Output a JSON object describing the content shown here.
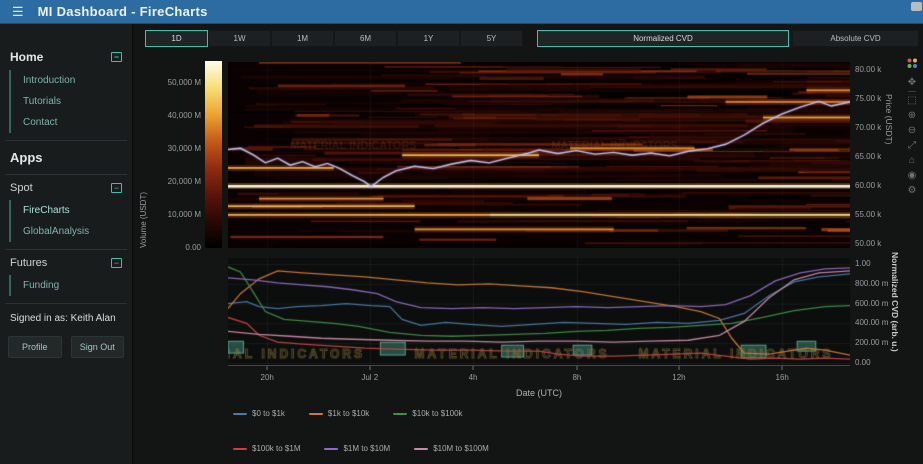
{
  "navbar": {
    "title": "MI Dashboard - FireCharts",
    "menu_glyph": "☰"
  },
  "sidebar": {
    "collapse_glyph": "−",
    "home_label": "Home",
    "home_items": [
      "Introduction",
      "Tutorials",
      "Contact"
    ],
    "apps_label": "Apps",
    "spot_label": "Spot",
    "spot_items": [
      "FireCharts",
      "GlobalAnalysis"
    ],
    "futures_label": "Futures",
    "futures_items": [
      "Funding"
    ],
    "signed_in": "Signed in as: Keith Alan",
    "profile_button": "Profile",
    "signout_button": "Sign Out"
  },
  "controls": {
    "ranges": [
      "1D",
      "1W",
      "1M",
      "6M",
      "1Y",
      "5Y"
    ],
    "active_range": "1D",
    "modes": [
      "Normalized CVD",
      "Absolute CVD"
    ],
    "active_mode": "Normalized CVD"
  },
  "modebar": {
    "icons": [
      {
        "name": "pan",
        "glyph": "✥"
      },
      {
        "name": "box-select",
        "glyph": "⬚"
      },
      {
        "name": "zoom-in",
        "glyph": "⊕"
      },
      {
        "name": "zoom-out",
        "glyph": "⊖"
      },
      {
        "name": "autoscale",
        "glyph": "⤢"
      },
      {
        "name": "reset-axes",
        "glyph": "⌂"
      },
      {
        "name": "camera",
        "glyph": "◉"
      },
      {
        "name": "settings",
        "glyph": "⚙"
      }
    ]
  },
  "accent": {
    "teal": "#3fbfae",
    "navbar_blue": "#2d6ba3"
  },
  "chart_data": [
    {
      "type": "heatmap",
      "title": "Order book volume heatmap with price overlay",
      "colorbar": {
        "label": "Volume (USDT)",
        "ticks": [
          "50,000 M",
          "40,000 M",
          "30,000 M",
          "20,000 M",
          "10,000 M",
          "0.00"
        ],
        "range": [
          0,
          50000
        ]
      },
      "yaxis_right": {
        "label": "Price (USDT)",
        "ticks": [
          "80.00 k",
          "75.00 k",
          "70.00 k",
          "65.00 k",
          "60.00 k",
          "55.00 k",
          "50.00 k"
        ],
        "range": [
          49300,
          81400
        ]
      },
      "colorscale": [
        "#000000",
        "#2a0804",
        "#5a150a",
        "#8f2c10",
        "#c55a18",
        "#eda332",
        "#f7df77",
        "#fffceb"
      ],
      "grid": false,
      "liquidity_bands": [
        {
          "price": 60000,
          "x0": 0.0,
          "x1": 1.0,
          "strength": 1.0
        },
        {
          "price": 55000,
          "x0": 0.42,
          "x1": 1.0,
          "strength": 0.75
        },
        {
          "price": 55000,
          "x0": 0.0,
          "x1": 0.42,
          "strength": 0.45
        },
        {
          "price": 65300,
          "x0": 0.28,
          "x1": 0.5,
          "strength": 0.5
        },
        {
          "price": 63100,
          "x0": 0.0,
          "x1": 0.17,
          "strength": 0.45
        },
        {
          "price": 66500,
          "x0": 0.55,
          "x1": 0.75,
          "strength": 0.3
        },
        {
          "price": 71800,
          "x0": 0.86,
          "x1": 1.0,
          "strength": 0.4
        },
        {
          "price": 76500,
          "x0": 0.93,
          "x1": 1.0,
          "strength": 0.3
        },
        {
          "price": 52500,
          "x0": 0.3,
          "x1": 0.62,
          "strength": 0.3
        },
        {
          "price": 56500,
          "x0": 0.0,
          "x1": 0.3,
          "strength": 0.5
        },
        {
          "price": 57800,
          "x0": 0.05,
          "x1": 0.25,
          "strength": 0.3
        },
        {
          "price": 74500,
          "x0": 0.8,
          "x1": 1.0,
          "strength": 0.25
        }
      ],
      "price_line": {
        "name": "Price",
        "color": "#c3bdec",
        "points": [
          [
            0,
            66300
          ],
          [
            0.02,
            66500
          ],
          [
            0.04,
            65400
          ],
          [
            0.06,
            64000
          ],
          [
            0.08,
            64800
          ],
          [
            0.1,
            63600
          ],
          [
            0.12,
            64200
          ],
          [
            0.14,
            63300
          ],
          [
            0.16,
            63900
          ],
          [
            0.18,
            63000
          ],
          [
            0.2,
            61800
          ],
          [
            0.22,
            60700
          ],
          [
            0.23,
            59900
          ],
          [
            0.25,
            61500
          ],
          [
            0.27,
            62600
          ],
          [
            0.3,
            63400
          ],
          [
            0.33,
            63000
          ],
          [
            0.36,
            63800
          ],
          [
            0.39,
            64400
          ],
          [
            0.42,
            64000
          ],
          [
            0.45,
            64800
          ],
          [
            0.48,
            65600
          ],
          [
            0.5,
            66200
          ],
          [
            0.53,
            65600
          ],
          [
            0.56,
            66100
          ],
          [
            0.59,
            65500
          ],
          [
            0.62,
            65800
          ],
          [
            0.65,
            65300
          ],
          [
            0.68,
            65700
          ],
          [
            0.71,
            65200
          ],
          [
            0.74,
            66000
          ],
          [
            0.77,
            66400
          ],
          [
            0.8,
            67200
          ],
          [
            0.83,
            68800
          ],
          [
            0.86,
            70800
          ],
          [
            0.89,
            72400
          ],
          [
            0.92,
            73600
          ],
          [
            0.95,
            74600
          ],
          [
            0.97,
            73800
          ],
          [
            1,
            74500
          ]
        ]
      },
      "watermark": "MATERIAL INDICATORS"
    },
    {
      "type": "line",
      "xlabel": "Date (UTC)",
      "x_ticks": [
        "20h",
        "Jul 2",
        "4h",
        "8h",
        "12h",
        "16h"
      ],
      "x_tick_positions": [
        0.063,
        0.228,
        0.394,
        0.561,
        0.725,
        0.891
      ],
      "yaxis_right": {
        "label": "Normalized CVD (arb. u.)",
        "ticks": [
          "1.00",
          "800.00 m",
          "600.00 m",
          "400.00 m",
          "200.00 m",
          "0.00"
        ],
        "range": [
          0,
          1
        ]
      },
      "grid": true,
      "legend_position": "below",
      "watermark": "MATERIAL INDICATORS",
      "series": [
        {
          "name": "$0 to $1k",
          "color": "#4a7aa8",
          "points": [
            [
              0,
              0.6
            ],
            [
              0.03,
              0.62
            ],
            [
              0.05,
              0.57
            ],
            [
              0.08,
              0.55
            ],
            [
              0.11,
              0.57
            ],
            [
              0.15,
              0.58
            ],
            [
              0.19,
              0.6
            ],
            [
              0.23,
              0.58
            ],
            [
              0.26,
              0.57
            ],
            [
              0.28,
              0.44
            ],
            [
              0.31,
              0.38
            ],
            [
              0.35,
              0.41
            ],
            [
              0.39,
              0.39
            ],
            [
              0.44,
              0.37
            ],
            [
              0.49,
              0.39
            ],
            [
              0.54,
              0.41
            ],
            [
              0.59,
              0.4
            ],
            [
              0.64,
              0.39
            ],
            [
              0.69,
              0.41
            ],
            [
              0.74,
              0.4
            ],
            [
              0.79,
              0.43
            ],
            [
              0.83,
              0.5
            ],
            [
              0.87,
              0.68
            ],
            [
              0.91,
              0.82
            ],
            [
              0.95,
              0.87
            ],
            [
              1,
              0.9
            ]
          ]
        },
        {
          "name": "$1k to $10k",
          "color": "#cc7a30",
          "points": [
            [
              0,
              0.55
            ],
            [
              0.02,
              0.7
            ],
            [
              0.05,
              0.85
            ],
            [
              0.08,
              0.93
            ],
            [
              0.12,
              0.91
            ],
            [
              0.17,
              0.89
            ],
            [
              0.22,
              0.87
            ],
            [
              0.27,
              0.84
            ],
            [
              0.32,
              0.81
            ],
            [
              0.37,
              0.79
            ],
            [
              0.42,
              0.8
            ],
            [
              0.47,
              0.78
            ],
            [
              0.52,
              0.76
            ],
            [
              0.57,
              0.72
            ],
            [
              0.62,
              0.67
            ],
            [
              0.67,
              0.62
            ],
            [
              0.72,
              0.57
            ],
            [
              0.76,
              0.52
            ],
            [
              0.79,
              0.45
            ],
            [
              0.81,
              0.25
            ],
            [
              0.83,
              0.1
            ],
            [
              0.87,
              0.09
            ],
            [
              0.9,
              0.12
            ],
            [
              0.93,
              0.15
            ],
            [
              0.96,
              0.13
            ],
            [
              1,
              0.08
            ]
          ]
        },
        {
          "name": "$10k to $100k",
          "color": "#3f8e4a",
          "points": [
            [
              0,
              0.97
            ],
            [
              0.02,
              0.92
            ],
            [
              0.04,
              0.72
            ],
            [
              0.06,
              0.52
            ],
            [
              0.09,
              0.44
            ],
            [
              0.13,
              0.42
            ],
            [
              0.17,
              0.4
            ],
            [
              0.21,
              0.37
            ],
            [
              0.26,
              0.31
            ],
            [
              0.31,
              0.28
            ],
            [
              0.36,
              0.27
            ],
            [
              0.41,
              0.28
            ],
            [
              0.46,
              0.29
            ],
            [
              0.51,
              0.3
            ],
            [
              0.56,
              0.32
            ],
            [
              0.61,
              0.33
            ],
            [
              0.66,
              0.35
            ],
            [
              0.71,
              0.36
            ],
            [
              0.76,
              0.38
            ],
            [
              0.81,
              0.4
            ],
            [
              0.86,
              0.46
            ],
            [
              0.91,
              0.53
            ],
            [
              0.96,
              0.57
            ],
            [
              1,
              0.58
            ]
          ]
        },
        {
          "name": "$100k to $1M",
          "color": "#c44442",
          "points": [
            [
              0,
              0.46
            ],
            [
              0.03,
              0.4
            ],
            [
              0.05,
              0.28
            ],
            [
              0.08,
              0.21
            ],
            [
              0.12,
              0.19
            ],
            [
              0.17,
              0.17
            ],
            [
              0.22,
              0.15
            ],
            [
              0.27,
              0.14
            ],
            [
              0.33,
              0.13
            ],
            [
              0.39,
              0.13
            ],
            [
              0.45,
              0.12
            ],
            [
              0.5,
              0.12
            ],
            [
              0.53,
              0.09
            ],
            [
              0.57,
              0.07
            ],
            [
              0.62,
              0.07
            ],
            [
              0.67,
              0.08
            ],
            [
              0.72,
              0.09
            ],
            [
              0.76,
              0.1
            ],
            [
              0.8,
              0.07
            ],
            [
              0.84,
              0.04
            ],
            [
              0.88,
              0.05
            ],
            [
              0.92,
              0.04
            ],
            [
              0.96,
              0.05
            ],
            [
              1,
              0.04
            ]
          ]
        },
        {
          "name": "$1M to $10M",
          "color": "#8f6bbf",
          "points": [
            [
              0,
              0.86
            ],
            [
              0.04,
              0.84
            ],
            [
              0.08,
              0.81
            ],
            [
              0.12,
              0.79
            ],
            [
              0.16,
              0.77
            ],
            [
              0.2,
              0.74
            ],
            [
              0.24,
              0.7
            ],
            [
              0.27,
              0.62
            ],
            [
              0.31,
              0.56
            ],
            [
              0.36,
              0.55
            ],
            [
              0.41,
              0.56
            ],
            [
              0.46,
              0.55
            ],
            [
              0.51,
              0.56
            ],
            [
              0.56,
              0.57
            ],
            [
              0.61,
              0.56
            ],
            [
              0.66,
              0.57
            ],
            [
              0.71,
              0.58
            ],
            [
              0.76,
              0.57
            ],
            [
              0.8,
              0.59
            ],
            [
              0.84,
              0.68
            ],
            [
              0.88,
              0.83
            ],
            [
              0.92,
              0.91
            ],
            [
              0.96,
              0.95
            ],
            [
              1,
              0.96
            ]
          ]
        },
        {
          "name": "$10M to $100M",
          "color": "#c98ca8",
          "points": [
            [
              0,
              0.32
            ],
            [
              0.05,
              0.29
            ],
            [
              0.1,
              0.27
            ],
            [
              0.15,
              0.25
            ],
            [
              0.2,
              0.24
            ],
            [
              0.26,
              0.23
            ],
            [
              0.32,
              0.22
            ],
            [
              0.38,
              0.22
            ],
            [
              0.44,
              0.21
            ],
            [
              0.5,
              0.22
            ],
            [
              0.56,
              0.22
            ],
            [
              0.62,
              0.21
            ],
            [
              0.68,
              0.22
            ],
            [
              0.74,
              0.23
            ],
            [
              0.79,
              0.28
            ],
            [
              0.83,
              0.42
            ],
            [
              0.87,
              0.66
            ],
            [
              0.91,
              0.84
            ],
            [
              0.95,
              0.91
            ],
            [
              1,
              0.93
            ]
          ]
        }
      ],
      "signal_markers": [
        {
          "x": 0.0,
          "w": 0.025,
          "y": 0.1,
          "h": 0.12
        },
        {
          "x": 0.245,
          "w": 0.04,
          "y": 0.08,
          "h": 0.13
        },
        {
          "x": 0.44,
          "w": 0.035,
          "y": 0.06,
          "h": 0.12
        },
        {
          "x": 0.555,
          "w": 0.03,
          "y": 0.08,
          "h": 0.1
        },
        {
          "x": 0.825,
          "w": 0.04,
          "y": 0.05,
          "h": 0.13
        },
        {
          "x": 0.915,
          "w": 0.03,
          "y": 0.12,
          "h": 0.1
        }
      ]
    }
  ]
}
